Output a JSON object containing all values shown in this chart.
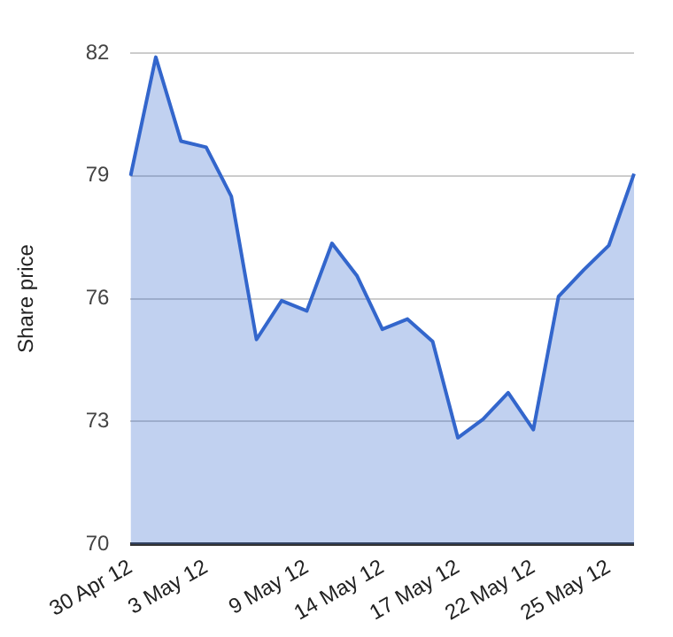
{
  "chart_data": {
    "type": "area",
    "ylabel": "Share price",
    "categories": [
      "30 Apr 12",
      null,
      null,
      "3 May 12",
      null,
      null,
      null,
      "9 May 12",
      null,
      null,
      "14 May 12",
      null,
      null,
      "17 May 12",
      null,
      null,
      "22 May 12",
      null,
      null,
      "25 May 12",
      null
    ],
    "series": [
      {
        "color": "#3366cc",
        "values": [
          79.0,
          81.9,
          79.85,
          79.7,
          78.5,
          75.0,
          75.95,
          75.7,
          77.35,
          76.55,
          75.25,
          75.5,
          74.95,
          72.6,
          73.05,
          73.7,
          72.8,
          76.05,
          76.7,
          77.3,
          79.05
        ]
      }
    ],
    "ylim": [
      70,
      82
    ],
    "yticks": [
      70,
      73,
      76,
      79,
      82
    ],
    "grid": "y",
    "legend": false
  }
}
